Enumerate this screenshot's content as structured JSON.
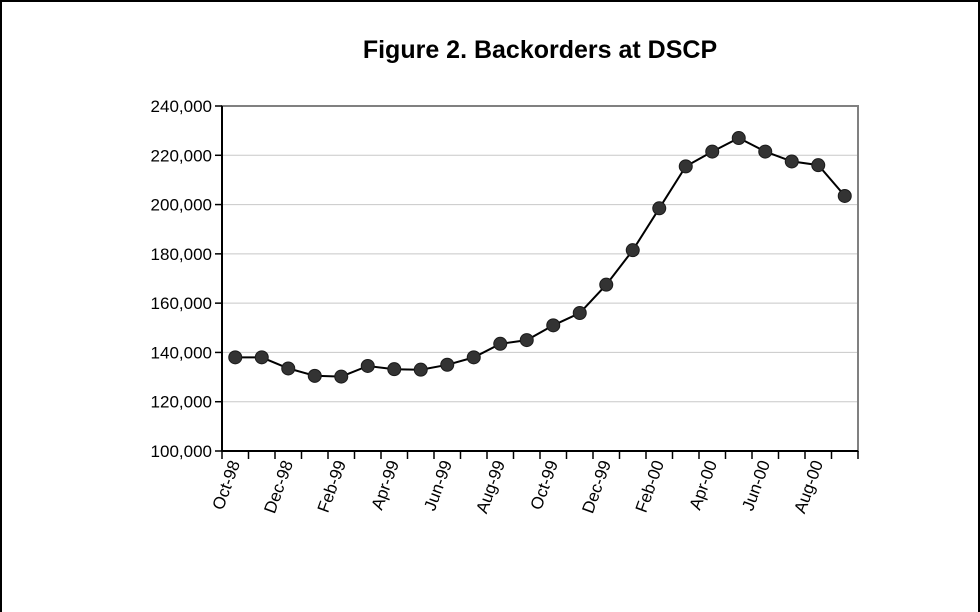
{
  "chart_data": {
    "type": "line",
    "title": "Figure 2.  Backorders at DSCP",
    "xlabel": "",
    "ylabel": "",
    "ylim": [
      100000,
      240000
    ],
    "yticks": [
      "100,000",
      "120,000",
      "140,000",
      "160,000",
      "180,000",
      "200,000",
      "220,000",
      "240,000"
    ],
    "xticks": [
      "Oct-98",
      "Dec-98",
      "Feb-99",
      "Apr-99",
      "Jun-99",
      "Aug-99",
      "Oct-99",
      "Dec-99",
      "Feb-00",
      "Apr-00",
      "Jun-00",
      "Aug-00"
    ],
    "grid": "horizontal",
    "legend": "none",
    "line_color": "#000000",
    "marker_color": "#333333",
    "x": [
      "Oct-98",
      "Nov-98",
      "Dec-98",
      "Jan-99",
      "Feb-99",
      "Mar-99",
      "Apr-99",
      "May-99",
      "Jun-99",
      "Jul-99",
      "Aug-99",
      "Sep-99",
      "Oct-99",
      "Nov-99",
      "Dec-99",
      "Jan-00",
      "Feb-00",
      "Mar-00",
      "Apr-00",
      "May-00",
      "Jun-00",
      "Jul-00",
      "Aug-00",
      "Sep-00"
    ],
    "values": [
      138000,
      138000,
      133500,
      130500,
      130200,
      134500,
      133200,
      133000,
      135000,
      138000,
      143500,
      145000,
      151000,
      156000,
      167500,
      181500,
      198500,
      215500,
      221500,
      227000,
      221500,
      217500,
      216000,
      203500
    ]
  }
}
